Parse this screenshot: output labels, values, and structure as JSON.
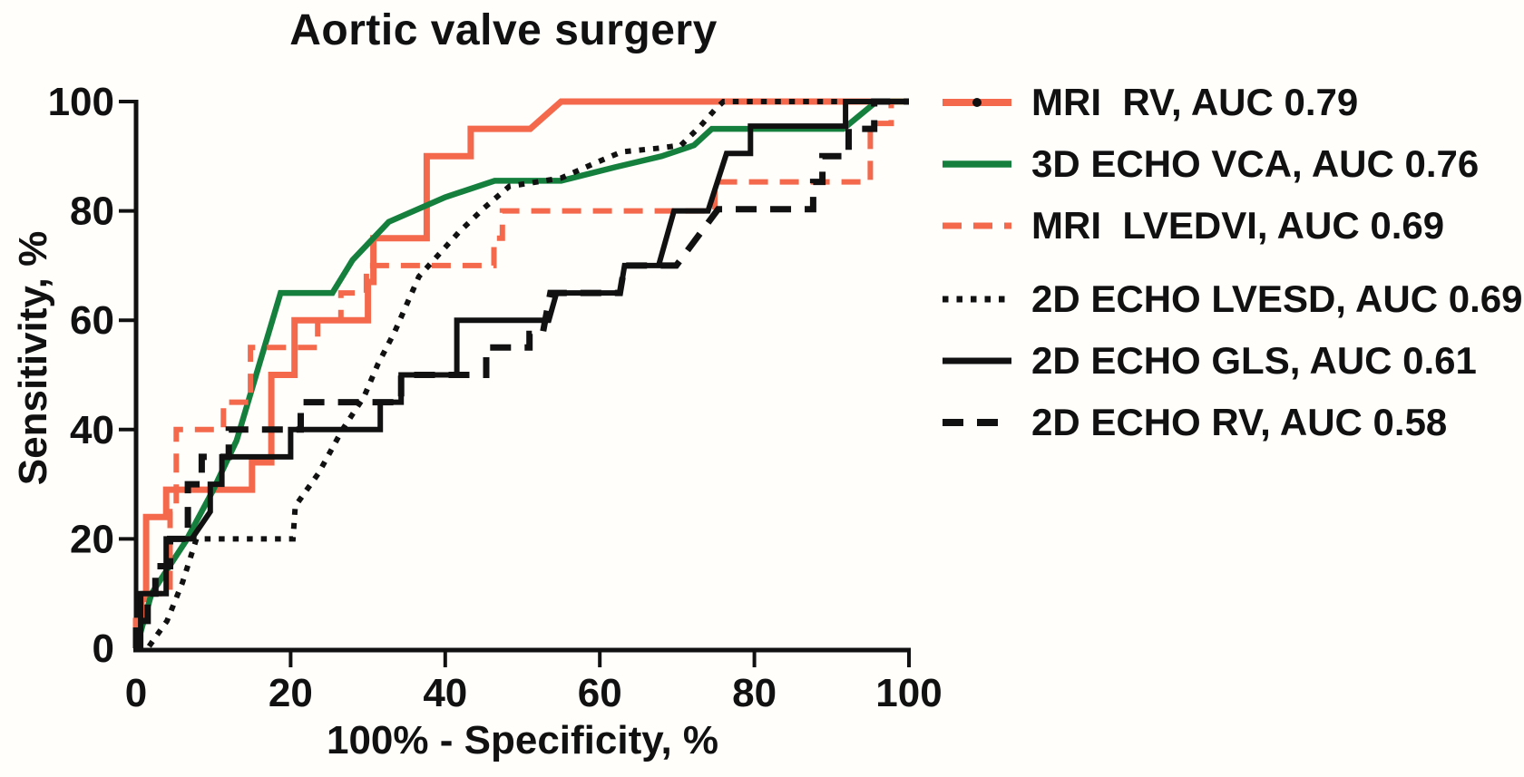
{
  "figure": {
    "background": "#fffefb",
    "axis_color": "#111111"
  },
  "chart_data": {
    "type": "line",
    "subtype": "roc-curves",
    "title": "Aortic valve surgery",
    "xlabel": "100% - Specificity, %",
    "ylabel": "Sensitivity, %",
    "xlim": [
      0,
      100
    ],
    "ylim": [
      0,
      100
    ],
    "x_ticks": [
      0,
      20,
      40,
      60,
      80,
      100
    ],
    "y_ticks": [
      0,
      20,
      40,
      60,
      80,
      100
    ],
    "grid": false,
    "legend_position": "right",
    "series": [
      {
        "id": "mri-rv",
        "name": "MRI  RV, AUC 0.79",
        "auc": 0.79,
        "color": "#f4694c",
        "style": "solid",
        "width": 7,
        "marker": "dot",
        "points": [
          [
            0,
            0
          ],
          [
            0,
            5
          ],
          [
            0.7,
            5
          ],
          [
            0.7,
            9
          ],
          [
            1.3,
            9
          ],
          [
            1.3,
            24
          ],
          [
            3.9,
            24
          ],
          [
            3.9,
            29
          ],
          [
            15,
            29
          ],
          [
            15,
            34
          ],
          [
            17.5,
            34
          ],
          [
            17.5,
            50
          ],
          [
            20.5,
            50
          ],
          [
            20.5,
            60
          ],
          [
            30,
            60
          ],
          [
            30,
            67
          ],
          [
            30.7,
            67
          ],
          [
            30.7,
            75
          ],
          [
            37.6,
            75
          ],
          [
            37.6,
            90
          ],
          [
            43.3,
            90
          ],
          [
            43.3,
            95
          ],
          [
            51,
            95
          ],
          [
            55,
            100
          ],
          [
            100,
            100
          ]
        ]
      },
      {
        "id": "3d-echo-vca",
        "name": "3D ECHO VCA, AUC 0.76",
        "auc": 0.76,
        "color": "#15803d",
        "style": "solid",
        "width": 6.5,
        "marker": "none",
        "points": [
          [
            0,
            0
          ],
          [
            2,
            10
          ],
          [
            6.4,
            19.5
          ],
          [
            9.9,
            28.7
          ],
          [
            13,
            38
          ],
          [
            18.7,
            65
          ],
          [
            25.4,
            65
          ],
          [
            28,
            71
          ],
          [
            32.7,
            78
          ],
          [
            40,
            82.5
          ],
          [
            46.4,
            85.5
          ],
          [
            55,
            85.5
          ],
          [
            62,
            88
          ],
          [
            68,
            90
          ],
          [
            72.2,
            92
          ],
          [
            74.5,
            95
          ],
          [
            91.5,
            95
          ],
          [
            95.8,
            100
          ],
          [
            100,
            100
          ]
        ]
      },
      {
        "id": "mri-lvedvi",
        "name": "MRI  LVEDVI, AUC 0.69",
        "auc": 0.69,
        "color": "#f4694c",
        "style": "dashed",
        "width": 6,
        "marker": "none",
        "points": [
          [
            0,
            0
          ],
          [
            0,
            5
          ],
          [
            1,
            5
          ],
          [
            1,
            10
          ],
          [
            4.4,
            10
          ],
          [
            4.4,
            25
          ],
          [
            5.2,
            25
          ],
          [
            5.2,
            40
          ],
          [
            11.3,
            40
          ],
          [
            11.3,
            45
          ],
          [
            14.8,
            45
          ],
          [
            14.8,
            55
          ],
          [
            23.5,
            55
          ],
          [
            23.5,
            60
          ],
          [
            26.5,
            60
          ],
          [
            26.5,
            65
          ],
          [
            29.8,
            65
          ],
          [
            29.8,
            70
          ],
          [
            46.3,
            70
          ],
          [
            46.3,
            75
          ],
          [
            47.4,
            75
          ],
          [
            47.4,
            80
          ],
          [
            74.9,
            80
          ],
          [
            74.9,
            85.3
          ],
          [
            95,
            85.3
          ],
          [
            95,
            96
          ],
          [
            97.7,
            96
          ],
          [
            97.7,
            100
          ],
          [
            100,
            100
          ]
        ]
      },
      {
        "id": "2d-echo-lvesd",
        "name": "2D ECHO LVESD, AUC 0.69",
        "auc": 0.69,
        "color": "#111111",
        "style": "dotted",
        "width": 6,
        "marker": "none",
        "points": [
          [
            0,
            0
          ],
          [
            1.5,
            0
          ],
          [
            4,
            5
          ],
          [
            6,
            12
          ],
          [
            7.8,
            20
          ],
          [
            20.3,
            20
          ],
          [
            20.6,
            26
          ],
          [
            23.6,
            32
          ],
          [
            26.7,
            40
          ],
          [
            29.5,
            46
          ],
          [
            31.3,
            52
          ],
          [
            33.5,
            58
          ],
          [
            36.6,
            68
          ],
          [
            41.7,
            76
          ],
          [
            45,
            80.5
          ],
          [
            48.3,
            84.5
          ],
          [
            55,
            86
          ],
          [
            59,
            88.5
          ],
          [
            62.8,
            90.8
          ],
          [
            67.8,
            91.5
          ],
          [
            70.5,
            92
          ],
          [
            73,
            95.5
          ],
          [
            74.9,
            98.5
          ],
          [
            76,
            100
          ],
          [
            100,
            100
          ]
        ]
      },
      {
        "id": "2d-echo-gls",
        "name": "2D ECHO GLS, AUC 0.61",
        "auc": 0.61,
        "color": "#111111",
        "style": "solid",
        "width": 6,
        "marker": "none",
        "points": [
          [
            0,
            0
          ],
          [
            0.6,
            0
          ],
          [
            0.6,
            10
          ],
          [
            3.9,
            10
          ],
          [
            3.9,
            20
          ],
          [
            7.2,
            20
          ],
          [
            9.6,
            25
          ],
          [
            9.6,
            30
          ],
          [
            11.1,
            30
          ],
          [
            11.1,
            35
          ],
          [
            20,
            35
          ],
          [
            20,
            40
          ],
          [
            31.6,
            40
          ],
          [
            31.6,
            45
          ],
          [
            34.3,
            45
          ],
          [
            34.3,
            50
          ],
          [
            41.5,
            50
          ],
          [
            41.5,
            60
          ],
          [
            53.4,
            60
          ],
          [
            54.4,
            65
          ],
          [
            62.6,
            65
          ],
          [
            63.2,
            70
          ],
          [
            67.6,
            70
          ],
          [
            69.6,
            80
          ],
          [
            74,
            80
          ],
          [
            76.4,
            90.5
          ],
          [
            79.5,
            90.5
          ],
          [
            79.5,
            95.5
          ],
          [
            91.8,
            95.5
          ],
          [
            91.8,
            100
          ],
          [
            100,
            100
          ]
        ]
      },
      {
        "id": "2d-echo-rv",
        "name": "2D ECHO RV, AUC 0.58",
        "auc": 0.58,
        "color": "#111111",
        "style": "long-dash",
        "width": 7,
        "marker": "none",
        "points": [
          [
            0,
            0
          ],
          [
            0,
            5
          ],
          [
            1.5,
            5
          ],
          [
            1.5,
            10
          ],
          [
            2.5,
            10
          ],
          [
            2.5,
            15
          ],
          [
            4.4,
            15
          ],
          [
            4.4,
            20
          ],
          [
            6.7,
            20
          ],
          [
            6.7,
            30
          ],
          [
            8.5,
            30
          ],
          [
            8.5,
            35
          ],
          [
            12,
            35
          ],
          [
            12,
            40
          ],
          [
            21.3,
            40
          ],
          [
            21.3,
            45
          ],
          [
            34.3,
            45
          ],
          [
            34.3,
            50
          ],
          [
            45.3,
            50
          ],
          [
            45.3,
            55
          ],
          [
            50.9,
            55
          ],
          [
            50.9,
            57.5
          ],
          [
            52.6,
            57.5
          ],
          [
            53.6,
            65
          ],
          [
            62.6,
            65
          ],
          [
            63.2,
            70
          ],
          [
            69.9,
            70
          ],
          [
            75.3,
            80.3
          ],
          [
            87.6,
            80.3
          ],
          [
            87.6,
            85.3
          ],
          [
            88.8,
            85.3
          ],
          [
            88.8,
            90
          ],
          [
            92.2,
            90
          ],
          [
            92.2,
            95
          ],
          [
            95.5,
            95
          ],
          [
            95.5,
            100
          ],
          [
            100,
            100
          ]
        ]
      }
    ]
  }
}
